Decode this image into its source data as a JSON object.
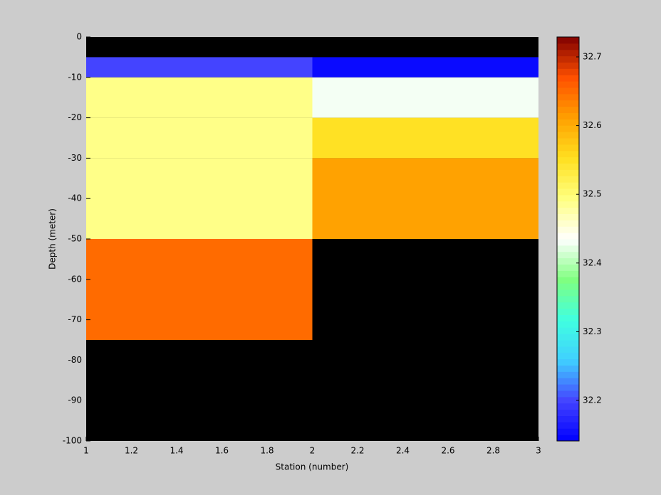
{
  "chart_data": {
    "type": "heatmap",
    "xlabel": "Station (number)",
    "ylabel": "Depth (meter)",
    "x_edges": [
      1,
      2,
      3
    ],
    "y_edges": [
      0,
      -5,
      -10,
      -20,
      -30,
      -50,
      -75,
      -100
    ],
    "values": [
      [
        null,
        null
      ],
      [
        32.2,
        32.15
      ],
      [
        32.49,
        32.43
      ],
      [
        32.49,
        32.55
      ],
      [
        32.49,
        32.61
      ],
      [
        32.65,
        null
      ],
      [
        null,
        null
      ]
    ],
    "xlim": [
      1,
      3
    ],
    "xticks": [
      1,
      1.2,
      1.4,
      1.6,
      1.8,
      2,
      2.2,
      2.4,
      2.6,
      2.8,
      3
    ],
    "ylim": [
      -100,
      0
    ],
    "yticks": [
      0,
      -10,
      -20,
      -30,
      -40,
      -50,
      -60,
      -70,
      -80,
      -90,
      -100
    ],
    "clim": [
      32.141,
      32.729
    ],
    "cticks": [
      32.2,
      32.3,
      32.4,
      32.5,
      32.6,
      32.7
    ],
    "colormap": [
      "#0000ff",
      "#4444ff",
      "#40d0ff",
      "#40ffe0",
      "#80ff80",
      "#ffffff",
      "#ffff80",
      "#ffe020",
      "#ffa000",
      "#ff5000",
      "#800000"
    ],
    "missing_color": "#000000"
  }
}
